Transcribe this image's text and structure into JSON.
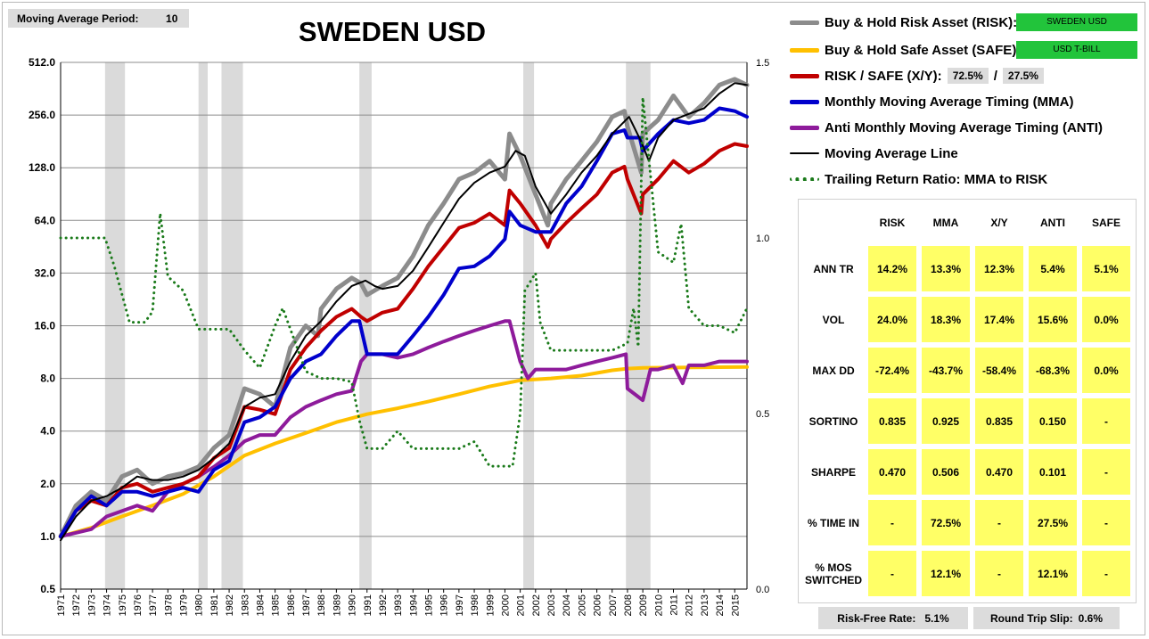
{
  "moving_average_period": {
    "label": "Moving Average Period:",
    "value": "10"
  },
  "chart_data": {
    "type": "line",
    "title": "SWEDEN USD",
    "y_scale": "log2",
    "ylim": [
      0.5,
      512
    ],
    "y_ticks": [
      "0.5",
      "1.0",
      "2.0",
      "4.0",
      "8.0",
      "16.0",
      "32.0",
      "64.0",
      "128.0",
      "256.0",
      "512.0"
    ],
    "y_tick_values": [
      0.5,
      1,
      2,
      4,
      8,
      16,
      32,
      64,
      128,
      256,
      512
    ],
    "y2lim": [
      0.0,
      1.5
    ],
    "y2_ticks": [
      "0.0",
      "0.5",
      "1.0",
      "1.5"
    ],
    "y2_tick_values": [
      0,
      0.5,
      1.0,
      1.5
    ],
    "xlim": [
      1971,
      2015.8
    ],
    "x_ticks": [
      "1971",
      "1972",
      "1973",
      "1974",
      "1975",
      "1976",
      "1977",
      "1978",
      "1979",
      "1980",
      "1981",
      "1982",
      "1983",
      "1984",
      "1985",
      "1986",
      "1987",
      "1988",
      "1989",
      "1990",
      "1991",
      "1992",
      "1993",
      "1994",
      "1995",
      "1996",
      "1997",
      "1998",
      "1999",
      "2000",
      "2001",
      "2002",
      "2003",
      "2004",
      "2005",
      "2006",
      "2007",
      "2008",
      "2009",
      "2010",
      "2011",
      "2012",
      "2013",
      "2014",
      "2015"
    ],
    "recessions": [
      [
        1973.9,
        1975.2
      ],
      [
        1980.0,
        1980.6
      ],
      [
        1981.5,
        1982.9
      ],
      [
        1990.5,
        1991.3
      ],
      [
        2001.2,
        2001.9
      ],
      [
        2007.9,
        2009.5
      ]
    ],
    "grid": true,
    "legend_position": "top-right",
    "series": [
      {
        "key": "risk",
        "name": "Buy & Hold Risk Asset (RISK):",
        "tag": "SWEDEN USD",
        "color": "#8c8c8c",
        "width": 5,
        "x": [
          1971,
          1972,
          1973,
          1974,
          1975,
          1976,
          1977,
          1978,
          1979,
          1980,
          1981,
          1982,
          1983,
          1984,
          1985,
          1986,
          1987,
          1987.8,
          1988,
          1989,
          1990,
          1990.6,
          1991,
          1992,
          1993,
          1994,
          1995,
          1996,
          1997,
          1998,
          1999,
          2000,
          2000.3,
          2001,
          2002,
          2002.8,
          2003,
          2004,
          2005,
          2006,
          2007,
          2007.8,
          2008,
          2008.9,
          2009,
          2010,
          2011,
          2012,
          2013,
          2014,
          2015,
          2015.8
        ],
        "y": [
          1.0,
          1.5,
          1.8,
          1.6,
          2.2,
          2.4,
          2.0,
          2.2,
          2.3,
          2.5,
          3.2,
          3.8,
          7.0,
          6.5,
          5.5,
          12,
          16,
          14,
          20,
          26,
          30,
          28,
          24,
          27,
          30,
          40,
          60,
          80,
          110,
          120,
          140,
          110,
          200,
          150,
          90,
          60,
          80,
          110,
          140,
          180,
          250,
          270,
          220,
          120,
          200,
          240,
          330,
          250,
          300,
          380,
          410,
          380
        ]
      },
      {
        "key": "safe",
        "name": "Buy & Hold Safe Asset (SAFE):",
        "tag": "USD T-BILL",
        "color": "#ffc000",
        "width": 4,
        "x": [
          1971,
          1973,
          1975,
          1977,
          1979,
          1981,
          1983,
          1985,
          1987,
          1989,
          1991,
          1993,
          1995,
          1997,
          1999,
          2001,
          2003,
          2005,
          2007,
          2008,
          2009,
          2015.8
        ],
        "y": [
          1.0,
          1.12,
          1.3,
          1.5,
          1.75,
          2.2,
          2.9,
          3.4,
          3.9,
          4.5,
          5.0,
          5.4,
          5.9,
          6.5,
          7.2,
          7.8,
          8.0,
          8.3,
          8.9,
          9.1,
          9.2,
          9.3
        ]
      },
      {
        "key": "xy",
        "name": "RISK / SAFE (X/Y):",
        "color": "#c00000",
        "width": 4,
        "ratio_left": "72.5%",
        "ratio_right": "27.5%",
        "x": [
          1971,
          1972,
          1973,
          1974,
          1975,
          1976,
          1977,
          1978,
          1979,
          1980,
          1981,
          1982,
          1983,
          1984,
          1985,
          1986,
          1987,
          1988,
          1989,
          1990,
          1990.6,
          1991,
          1992,
          1993,
          1994,
          1995,
          1996,
          1997,
          1998,
          1999,
          2000,
          2000.3,
          2001,
          2002,
          2002.8,
          2003,
          2004,
          2005,
          2006,
          2007,
          2007.8,
          2008,
          2008.9,
          2009,
          2010,
          2011,
          2012,
          2013,
          2014,
          2015,
          2015.8
        ],
        "y": [
          1.0,
          1.4,
          1.6,
          1.5,
          1.9,
          2.0,
          1.8,
          1.9,
          2.0,
          2.2,
          2.8,
          3.2,
          5.5,
          5.3,
          5.0,
          9,
          12,
          15,
          18,
          20,
          18,
          17,
          19,
          20,
          26,
          35,
          45,
          58,
          62,
          70,
          60,
          95,
          80,
          60,
          45,
          50,
          62,
          75,
          90,
          120,
          130,
          110,
          70,
          90,
          110,
          140,
          120,
          135,
          160,
          175,
          170
        ]
      },
      {
        "key": "mma",
        "name": "Monthly Moving Average Timing (MMA)",
        "color": "#0000cc",
        "width": 4,
        "x": [
          1971,
          1972,
          1973,
          1974,
          1975,
          1976,
          1977,
          1978,
          1979,
          1980,
          1981,
          1982,
          1983,
          1984,
          1985,
          1986,
          1987,
          1988,
          1989,
          1990,
          1990.5,
          1991,
          1992,
          1993,
          1994,
          1995,
          1996,
          1997,
          1998,
          1999,
          2000,
          2000.3,
          2001,
          2002,
          2003,
          2004,
          2005,
          2006,
          2007,
          2007.8,
          2008,
          2008.8,
          2009,
          2010,
          2011,
          2012,
          2013,
          2014,
          2015,
          2015.8
        ],
        "y": [
          1.0,
          1.4,
          1.7,
          1.5,
          1.8,
          1.8,
          1.7,
          1.8,
          1.9,
          1.8,
          2.4,
          2.7,
          4.5,
          4.8,
          5.5,
          8,
          10,
          11,
          14,
          17,
          17,
          11,
          11,
          11,
          14,
          18,
          24,
          34,
          35,
          40,
          50,
          72,
          60,
          55,
          55,
          80,
          100,
          140,
          200,
          210,
          190,
          190,
          160,
          200,
          240,
          230,
          240,
          280,
          270,
          250
        ]
      },
      {
        "key": "anti",
        "name": "Anti Monthly Moving Average Timing (ANTI)",
        "color": "#8e1b9b",
        "width": 4,
        "x": [
          1971,
          1973,
          1974,
          1976,
          1977,
          1978,
          1979,
          1980,
          1981,
          1982,
          1983,
          1984,
          1985,
          1986,
          1987,
          1988,
          1989,
          1990,
          1990.6,
          1991,
          1992,
          1993,
          1994,
          1995,
          1996,
          1997,
          1998,
          1999,
          2000,
          2000.3,
          2001,
          2001.5,
          2002,
          2003,
          2004,
          2005,
          2006,
          2007,
          2007.9,
          2008,
          2009,
          2009.5,
          2010,
          2011,
          2011.6,
          2012,
          2013,
          2014,
          2015,
          2015.8
        ],
        "y": [
          1.0,
          1.1,
          1.3,
          1.5,
          1.4,
          1.8,
          2.0,
          2.2,
          2.5,
          2.9,
          3.5,
          3.8,
          3.8,
          4.8,
          5.5,
          6,
          6.5,
          6.8,
          10,
          11,
          11,
          10.5,
          11,
          12,
          13,
          14,
          15,
          16,
          17,
          17,
          10,
          8,
          9,
          9,
          9,
          9.5,
          10,
          10.5,
          11,
          7,
          6,
          9,
          9,
          9.5,
          7.5,
          9.5,
          9.5,
          10,
          10,
          10
        ]
      },
      {
        "key": "ma",
        "name": "Moving Average Line",
        "color": "#000000",
        "width": 2,
        "x": [
          1971,
          1972,
          1973,
          1974,
          1975,
          1976,
          1977,
          1978,
          1979,
          1980,
          1981,
          1982,
          1983,
          1984,
          1985,
          1986,
          1987,
          1988,
          1989,
          1990,
          1990.9,
          1991.5,
          1992,
          1993,
          1994,
          1995,
          1996,
          1997,
          1998,
          1999,
          2000,
          2000.7,
          2001.3,
          2002,
          2003,
          2004,
          2005,
          2006,
          2007,
          2008.1,
          2008.9,
          2009.4,
          2010,
          2011,
          2012,
          2013,
          2014,
          2015,
          2015.8
        ],
        "y": [
          0.95,
          1.3,
          1.6,
          1.7,
          1.9,
          2.2,
          2.1,
          2.1,
          2.2,
          2.4,
          2.8,
          3.4,
          5.5,
          6.2,
          6.5,
          10,
          14,
          17,
          22,
          27,
          29,
          27,
          26,
          27,
          33,
          45,
          62,
          85,
          105,
          120,
          130,
          160,
          150,
          100,
          70,
          90,
          120,
          150,
          200,
          250,
          180,
          140,
          190,
          240,
          260,
          280,
          340,
          390,
          380
        ]
      },
      {
        "key": "ratio",
        "name": "Trailing Return Ratio: MMA to RISK",
        "color": "#1a7a1a",
        "width": 3,
        "axis": "right",
        "dotted": true,
        "x": [
          1971,
          1973.9,
          1974.5,
          1975.5,
          1976.5,
          1977,
          1977.5,
          1978,
          1978.5,
          1979,
          1980,
          1981,
          1982,
          1983,
          1984,
          1985,
          1985.5,
          1986,
          1987,
          1988,
          1989,
          1990,
          1990.5,
          1991,
          1992,
          1993,
          1994,
          1995,
          1996,
          1997,
          1998,
          1999,
          2000,
          2000.5,
          2001,
          2001.3,
          2002,
          2002.3,
          2003,
          2004,
          2005,
          2006,
          2007,
          2008,
          2008.4,
          2008.7,
          2009,
          2009.5,
          2010,
          2011,
          2011.5,
          2012,
          2013,
          2014,
          2015,
          2015.8
        ],
        "y": [
          1.0,
          1.0,
          0.92,
          0.76,
          0.76,
          0.79,
          1.07,
          0.89,
          0.87,
          0.85,
          0.74,
          0.74,
          0.74,
          0.68,
          0.63,
          0.75,
          0.8,
          0.74,
          0.62,
          0.6,
          0.6,
          0.59,
          0.48,
          0.4,
          0.4,
          0.45,
          0.4,
          0.4,
          0.4,
          0.4,
          0.42,
          0.35,
          0.35,
          0.35,
          0.5,
          0.85,
          0.9,
          0.76,
          0.68,
          0.68,
          0.68,
          0.68,
          0.68,
          0.7,
          0.8,
          0.69,
          1.4,
          1.18,
          0.96,
          0.93,
          1.04,
          0.8,
          0.75,
          0.75,
          0.73,
          0.8
        ]
      }
    ]
  },
  "stats": {
    "headers": [
      "RISK",
      "MMA",
      "X/Y",
      "ANTI",
      "SAFE"
    ],
    "rows": [
      {
        "label": "ANN TR",
        "values": [
          "14.2%",
          "13.3%",
          "12.3%",
          "5.4%",
          "5.1%"
        ]
      },
      {
        "label": "VOL",
        "values": [
          "24.0%",
          "18.3%",
          "17.4%",
          "15.6%",
          "0.0%"
        ]
      },
      {
        "label": "MAX DD",
        "values": [
          "-72.4%",
          "-43.7%",
          "-58.4%",
          "-68.3%",
          "0.0%"
        ]
      },
      {
        "label": "SORTINO",
        "values": [
          "0.835",
          "0.925",
          "0.835",
          "0.150",
          "-"
        ]
      },
      {
        "label": "SHARPE",
        "values": [
          "0.470",
          "0.506",
          "0.470",
          "0.101",
          "-"
        ]
      },
      {
        "label": "% TIME IN",
        "values": [
          "-",
          "72.5%",
          "-",
          "27.5%",
          "-"
        ]
      },
      {
        "label": "% MOS SWITCHED",
        "values": [
          "-",
          "12.1%",
          "-",
          "12.1%",
          "-"
        ]
      }
    ]
  },
  "footer": {
    "risk_free_label": "Risk-Free Rate:",
    "risk_free_value": "5.1%",
    "slip_label": "Round Trip Slip:",
    "slip_value": "0.6%"
  }
}
